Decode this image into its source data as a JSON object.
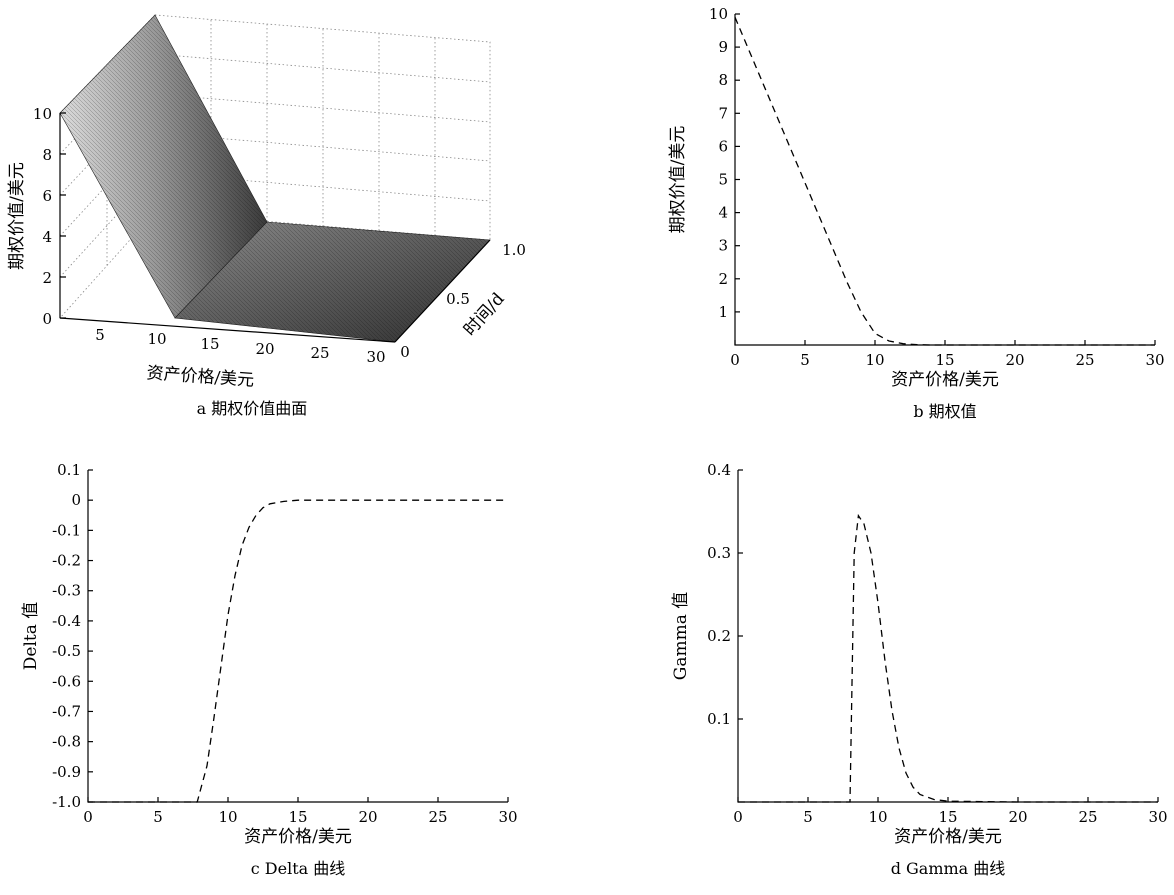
{
  "chart_data": [
    {
      "type": "surface",
      "caption": "a 期权价值曲面",
      "xlabel": "资产价格/美元",
      "ylabel": "时间/d",
      "zlabel": "期权价值/美元",
      "x_ticks": [
        "5",
        "10",
        "15",
        "20",
        "25",
        "30"
      ],
      "y_ticks": [
        "0",
        "0.5",
        "1.0"
      ],
      "z_ticks": [
        "0",
        "2",
        "4",
        "6",
        "8",
        "10"
      ],
      "xlim": [
        0,
        30
      ],
      "ylim": [
        0,
        1
      ],
      "zlim": [
        0,
        10
      ],
      "strike": 10,
      "colormap": "gray",
      "grid": true
    },
    {
      "type": "line",
      "caption": "b 期权值",
      "xlabel": "资产价格/美元",
      "ylabel": "期权价值/美元",
      "x_ticks": [
        "0",
        "5",
        "10",
        "15",
        "20",
        "25",
        "30"
      ],
      "y_ticks": [
        "1",
        "2",
        "3",
        "4",
        "5",
        "6",
        "7",
        "8",
        "9",
        "10"
      ],
      "xlim": [
        0,
        30
      ],
      "ylim": [
        0,
        10
      ],
      "line_style": "dashed",
      "x": [
        0,
        1,
        2,
        3,
        4,
        5,
        6,
        7,
        8,
        9,
        10,
        11,
        12,
        13,
        14,
        15,
        20,
        25,
        30
      ],
      "y": [
        9.9,
        8.9,
        7.9,
        6.9,
        5.9,
        4.9,
        3.9,
        2.9,
        1.9,
        1.0,
        0.35,
        0.12,
        0.04,
        0.01,
        0.0,
        0.0,
        0.0,
        0.0,
        0.0
      ]
    },
    {
      "type": "line",
      "caption": "c Delta 曲线",
      "xlabel": "资产价格/美元",
      "ylabel": "Delta 值",
      "x_ticks": [
        "0",
        "5",
        "10",
        "15",
        "20",
        "25",
        "30"
      ],
      "y_ticks": [
        "0.1",
        "0",
        "-0.1",
        "-0.2",
        "-0.3",
        "-0.4",
        "-0.5",
        "-0.6",
        "-0.7",
        "-0.8",
        "-0.9",
        "-1.0"
      ],
      "xlim": [
        0,
        30
      ],
      "ylim": [
        -1,
        0.1
      ],
      "line_style": "dashed",
      "x": [
        0,
        5,
        7.5,
        7.8,
        8.5,
        9,
        9.5,
        10,
        10.5,
        11,
        11.5,
        12,
        12.5,
        13,
        14,
        15,
        20,
        25,
        30
      ],
      "y": [
        -1.0,
        -1.0,
        -1.0,
        -1.0,
        -0.88,
        -0.72,
        -0.55,
        -0.38,
        -0.25,
        -0.15,
        -0.09,
        -0.05,
        -0.025,
        -0.012,
        -0.004,
        0.0,
        0.0,
        0.0,
        0.0
      ]
    },
    {
      "type": "line",
      "caption": "d Gamma 曲线",
      "xlabel": "资产价格/美元",
      "ylabel": "Gamma 值",
      "x_ticks": [
        "0",
        "5",
        "10",
        "15",
        "20",
        "25",
        "30"
      ],
      "y_ticks": [
        "0.1",
        "0.2",
        "0.3",
        "0.4"
      ],
      "xlim": [
        0,
        30
      ],
      "ylim": [
        0,
        0.4
      ],
      "line_style": "dashed",
      "x": [
        0,
        5,
        8,
        8.1,
        8.3,
        8.6,
        9,
        9.5,
        10,
        10.5,
        11,
        11.5,
        12,
        12.5,
        13,
        14,
        15,
        20,
        25,
        30
      ],
      "y": [
        0.0,
        0.0,
        0.0,
        0.1,
        0.3,
        0.345,
        0.335,
        0.3,
        0.24,
        0.17,
        0.11,
        0.065,
        0.035,
        0.018,
        0.009,
        0.003,
        0.001,
        0.0,
        0.0,
        0.0
      ]
    }
  ]
}
